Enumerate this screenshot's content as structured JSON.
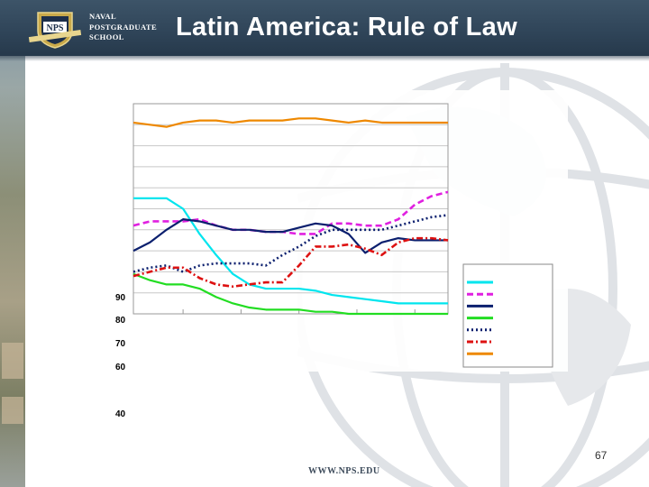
{
  "header": {
    "school_lines": [
      "NAVAL",
      "POSTGRADUATE",
      "SCHOOL"
    ],
    "logo_text": "NPS",
    "title": "Latin America: Rule of Law"
  },
  "footer": {
    "url": "WWW.NPS.EDU",
    "slide_number": "67"
  },
  "colors": {
    "header_bg": "#2f4458",
    "series_cyan": "#00e5ee",
    "series_magenta": "#e020e0",
    "series_navy": "#0b1f6e",
    "series_green": "#22dd22",
    "series_navy_dotted": "#0b1f6e",
    "series_red": "#dd1111",
    "series_orange": "#ee8800"
  },
  "chart_data": {
    "type": "line",
    "x": [
      1,
      2,
      3,
      4,
      5,
      6,
      7,
      8,
      9,
      10,
      11,
      12,
      13,
      14,
      15,
      16,
      17,
      18,
      19,
      20
    ],
    "ylim": [
      0,
      100
    ],
    "yticks_visible": [
      "90",
      "80",
      "70",
      "60",
      "40"
    ],
    "series": [
      {
        "name": "",
        "color": "#00e5ee",
        "style": "solid",
        "values": [
          55,
          55,
          55,
          50,
          38,
          28,
          19,
          14,
          12,
          12,
          12,
          11,
          9,
          8,
          7,
          6,
          5,
          5,
          5,
          5
        ]
      },
      {
        "name": "",
        "color": "#e020e0",
        "style": "dashed",
        "values": [
          42,
          44,
          44,
          44,
          45,
          42,
          40,
          40,
          39,
          39,
          38,
          38,
          43,
          43,
          42,
          42,
          45,
          52,
          56,
          58
        ]
      },
      {
        "name": "",
        "color": "#0b1f6e",
        "style": "solid",
        "values": [
          30,
          34,
          40,
          45,
          44,
          42,
          40,
          40,
          39,
          39,
          41,
          43,
          42,
          38,
          29,
          34,
          36,
          35,
          35,
          35
        ]
      },
      {
        "name": "",
        "color": "#22dd22",
        "style": "solid",
        "values": [
          19,
          16,
          14,
          14,
          12,
          8,
          5,
          3,
          2,
          2,
          2,
          1,
          1,
          0,
          0,
          0,
          0,
          0,
          0,
          0
        ]
      },
      {
        "name": "",
        "color": "#0b1f6e",
        "style": "dotted",
        "values": [
          20,
          22,
          23,
          20,
          23,
          24,
          24,
          24,
          23,
          28,
          32,
          37,
          40,
          40,
          40,
          40,
          42,
          44,
          46,
          47
        ]
      },
      {
        "name": "",
        "color": "#dd1111",
        "style": "dashdot",
        "values": [
          18,
          20,
          22,
          22,
          17,
          14,
          13,
          14,
          15,
          15,
          23,
          32,
          32,
          33,
          31,
          28,
          34,
          36,
          36,
          35
        ]
      },
      {
        "name": "",
        "color": "#ee8800",
        "style": "solid",
        "values": [
          91,
          90,
          89,
          91,
          92,
          92,
          91,
          92,
          92,
          92,
          93,
          93,
          92,
          91,
          92,
          91,
          91,
          91,
          91,
          91
        ]
      }
    ]
  }
}
